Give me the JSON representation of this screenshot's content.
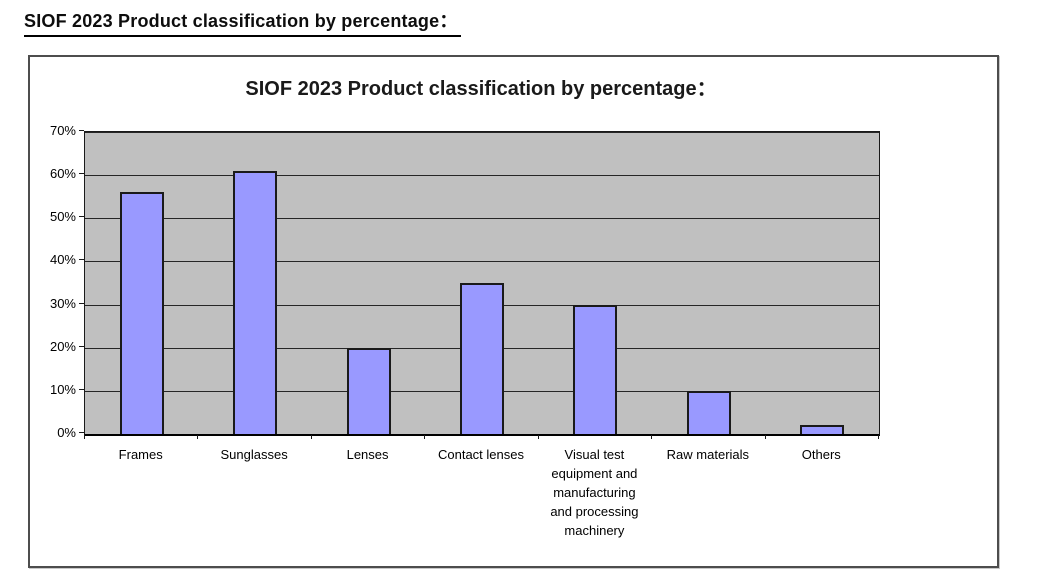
{
  "page": {
    "heading": "SIOF 2023 Product classification by percentage："
  },
  "chart_data": {
    "type": "bar",
    "title": "SIOF 2023 Product classification by percentage：",
    "categories": [
      "Frames",
      "Sunglasses",
      "Lenses",
      "Contact lenses",
      "Visual test equipment and manufacturing and processing machinery",
      "Raw materials",
      "Others"
    ],
    "values": [
      56,
      61,
      20,
      35,
      30,
      10,
      2
    ],
    "xlabel": "",
    "ylabel": "",
    "ylim": [
      0,
      70
    ],
    "ytick_step": 10,
    "ytick_labels": [
      "0%",
      "10%",
      "20%",
      "30%",
      "40%",
      "50%",
      "60%",
      "70%"
    ],
    "grid": true,
    "legend_position": "none",
    "colors": {
      "bar_fill": "#9999ff",
      "bar_border": "#1a1a1a",
      "plot_background": "#c0c0c0",
      "gridline": "#262626",
      "frame_border": "#4d4d4d",
      "text": "#000000"
    }
  }
}
